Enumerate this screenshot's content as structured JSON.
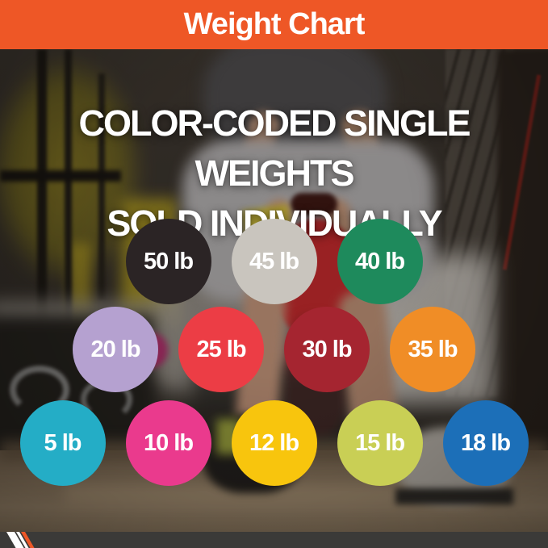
{
  "header": {
    "title": "Weight Chart",
    "background_color": "#EE5726",
    "text_color": "#FFFFFF"
  },
  "headline": {
    "line1": "COLOR-CODED SINGLE WEIGHTS",
    "line2": "SOLD INDIVIDUALLY"
  },
  "chart_data": {
    "type": "table",
    "title": "Weight Chart",
    "subtitle_lines": [
      "COLOR-CODED SINGLE WEIGHTS",
      "SOLD INDIVIDUALLY"
    ],
    "label_text_color": "#FFFFFF",
    "rows": [
      {
        "items": [
          {
            "label": "50 lb",
            "value_lb": 50,
            "color": "#2B2425",
            "color_name": "black"
          },
          {
            "label": "45 lb",
            "value_lb": 45,
            "color": "#C9C5BE",
            "color_name": "silver"
          },
          {
            "label": "40 lb",
            "value_lb": 40,
            "color": "#1E8A5C",
            "color_name": "green"
          }
        ]
      },
      {
        "items": [
          {
            "label": "20 lb",
            "value_lb": 20,
            "color": "#B5A1D0",
            "color_name": "lavender"
          },
          {
            "label": "25 lb",
            "value_lb": 25,
            "color": "#EC3D45",
            "color_name": "red"
          },
          {
            "label": "30 lb",
            "value_lb": 30,
            "color": "#A52530",
            "color_name": "dark-red"
          },
          {
            "label": "35 lb",
            "value_lb": 35,
            "color": "#F08D26",
            "color_name": "orange"
          }
        ]
      },
      {
        "items": [
          {
            "label": "5 lb",
            "value_lb": 5,
            "color": "#24ADC6",
            "color_name": "teal"
          },
          {
            "label": "10 lb",
            "value_lb": 10,
            "color": "#EA3A8D",
            "color_name": "pink"
          },
          {
            "label": "12 lb",
            "value_lb": 12,
            "color": "#F8C50D",
            "color_name": "yellow"
          },
          {
            "label": "15 lb",
            "value_lb": 15,
            "color": "#C9CF55",
            "color_name": "lime"
          },
          {
            "label": "18 lb",
            "value_lb": 18,
            "color": "#1C6FB8",
            "color_name": "blue"
          }
        ]
      }
    ]
  },
  "footer": {
    "background_color": "#3B3A38",
    "stripe_colors": [
      "#FFFFFF",
      "#FFFFFF",
      "#EE5726"
    ]
  }
}
